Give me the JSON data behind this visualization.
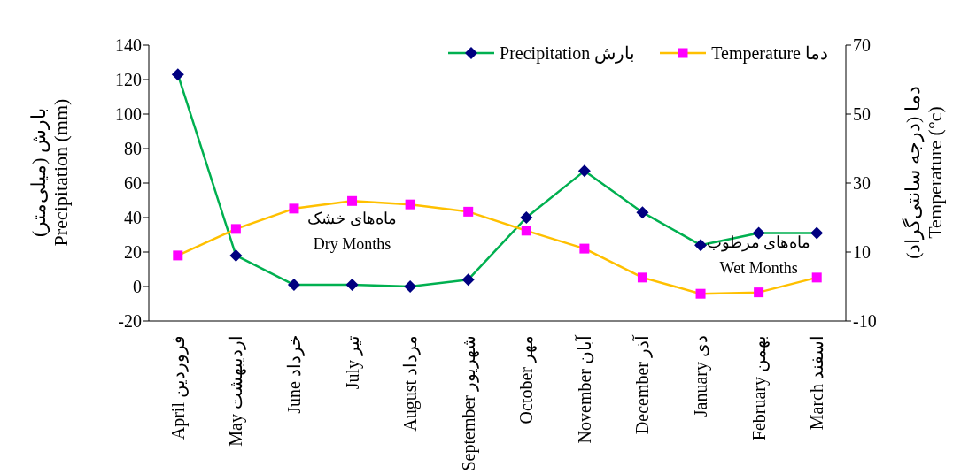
{
  "chart_data": {
    "type": "line",
    "categories": [
      "April  فروردین",
      "May اردیبهشت",
      "June خرداد",
      "July تیر",
      "August مرداد",
      "September شهریور",
      "October  مهر",
      "November آبان",
      "December آذر",
      "January دی",
      "February بهمن",
      "March اسفند"
    ],
    "series": [
      {
        "name": "Precipitation  بارش",
        "color": "#00b050",
        "marker": "diamond",
        "values": [
          123,
          18,
          1,
          1,
          0,
          4,
          40,
          67,
          43,
          24,
          31,
          31
        ]
      },
      {
        "name": "Temperature دما",
        "color": "#ffc000",
        "marker": "square",
        "axis": "y2",
        "values": [
          9,
          16.7,
          22.6,
          24.8,
          23.8,
          21.7,
          16.2,
          11,
          2.6,
          -2.1,
          -1.7,
          2.6
        ]
      }
    ],
    "ylabel": "بارش (میلی‌متر)\nPrecipitation (mm)",
    "y2label": "دما (درجه سانتی‌گراد)\nTemperature (°c)",
    "ylim": [
      -20,
      140
    ],
    "yticks": [
      -20,
      0,
      20,
      40,
      60,
      80,
      100,
      120,
      140
    ],
    "y2lim": [
      -10,
      70
    ],
    "y2ticks": [
      -10,
      10,
      30,
      50,
      70
    ],
    "annotations": [
      "ماه‌های خشک\nDry Months",
      "ماه‌های مرطوب\nWet Months"
    ],
    "legend": "top right",
    "grid": false
  }
}
